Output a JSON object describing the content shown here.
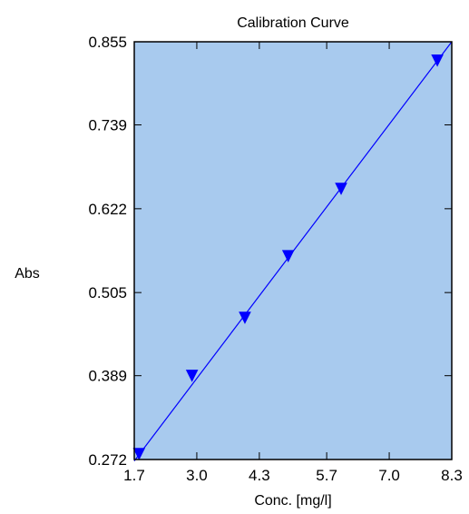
{
  "chart_data": {
    "type": "scatter",
    "title": "Calibration Curve",
    "xlabel": "Conc. [mg/l]",
    "ylabel": "Abs",
    "xlim": [
      1.7,
      8.3
    ],
    "ylim": [
      0.272,
      0.855
    ],
    "x_ticks": [
      "1.7",
      "3.0",
      "4.3",
      "5.7",
      "7.0",
      "8.3"
    ],
    "y_ticks": [
      "0.272",
      "0.389",
      "0.505",
      "0.622",
      "0.739",
      "0.855"
    ],
    "grid": false,
    "marker": "triangle-down",
    "colors": {
      "plot_background": "#a8caee",
      "series": "#0000ff",
      "frame": "#000000"
    },
    "series": [
      {
        "points": [
          {
            "x": 1.8,
            "y": 0.28
          },
          {
            "x": 2.9,
            "y": 0.389
          },
          {
            "x": 4.0,
            "y": 0.47
          },
          {
            "x": 4.9,
            "y": 0.556
          },
          {
            "x": 6.0,
            "y": 0.65
          },
          {
            "x": 8.0,
            "y": 0.829
          }
        ]
      }
    ],
    "fit_line": {
      "points": [
        {
          "x": 1.7,
          "y": 0.27
        },
        {
          "x": 8.3,
          "y": 0.855
        }
      ]
    }
  }
}
